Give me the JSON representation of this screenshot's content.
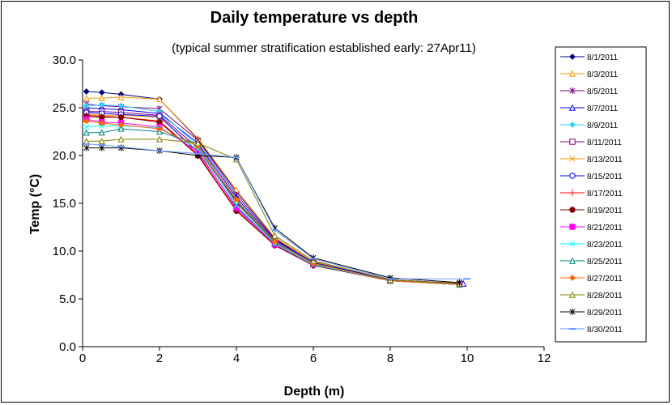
{
  "chart_data": {
    "type": "line",
    "title": "Daily temperature vs depth",
    "subtitle": "(typical summer stratification established early: 27Apr11)",
    "xlabel": "Depth (m)",
    "ylabel": "Temp (°C)",
    "xlim": [
      0,
      12
    ],
    "ylim": [
      0,
      30
    ],
    "xticks": [
      "0",
      "2",
      "4",
      "6",
      "8",
      "10",
      "12"
    ],
    "yticks": [
      "0.0",
      "5.0",
      "10.0",
      "15.0",
      "20.0",
      "25.0",
      "30.0"
    ],
    "grid": false,
    "legend_position": "right",
    "series": [
      {
        "name": "8/1/2011",
        "color": "#000080",
        "marker": "diamond",
        "x": [
          0.1,
          0.5,
          1,
          2,
          3,
          4,
          5,
          6,
          8,
          9.8
        ],
        "y": [
          26.7,
          26.6,
          26.4,
          25.9,
          21.7,
          16.2,
          11.3,
          8.9,
          7.0,
          6.6
        ]
      },
      {
        "name": "8/3/2011",
        "color": "#FF9900",
        "marker": "triangle",
        "x": [
          0.1,
          0.5,
          1,
          2,
          3,
          4,
          5,
          6,
          8,
          9.8
        ],
        "y": [
          26.0,
          26.0,
          26.1,
          25.9,
          21.8,
          16.4,
          11.4,
          8.9,
          7.0,
          6.6
        ]
      },
      {
        "name": "8/5/2011",
        "color": "#800080",
        "marker": "asterisk",
        "x": [
          0.1,
          0.5,
          1,
          2,
          3,
          4,
          5,
          6,
          8,
          9.8
        ],
        "y": [
          25.4,
          25.2,
          25.1,
          24.9,
          21.6,
          15.9,
          11.2,
          8.8,
          7.0,
          6.6
        ]
      },
      {
        "name": "8/7/2011",
        "color": "#0000FF",
        "marker": "triangle",
        "x": [
          0.1,
          0.5,
          1,
          2,
          3,
          4,
          5,
          6,
          8,
          9.9
        ],
        "y": [
          25.0,
          24.9,
          24.8,
          24.4,
          21.3,
          15.6,
          11.1,
          8.8,
          7.0,
          6.6
        ]
      },
      {
        "name": "8/9/2011",
        "color": "#33CCFF",
        "marker": "diamond",
        "x": [
          0.1,
          0.5,
          1,
          2,
          3,
          4,
          5,
          6,
          8,
          9.8
        ],
        "y": [
          25.2,
          25.3,
          25.2,
          24.6,
          21.0,
          15.3,
          11.0,
          8.7,
          6.9,
          6.5
        ]
      },
      {
        "name": "8/11/2011",
        "color": "#800080",
        "marker": "square",
        "x": [
          0.1,
          0.5,
          1,
          2,
          3,
          4,
          5,
          6,
          8,
          9.8
        ],
        "y": [
          24.6,
          24.6,
          24.5,
          24.2,
          20.8,
          15.1,
          10.9,
          8.7,
          6.9,
          6.5
        ]
      },
      {
        "name": "8/13/2011",
        "color": "#FF9900",
        "marker": "cross",
        "x": [
          0.1,
          0.5,
          1,
          2,
          3,
          4,
          5,
          6,
          8,
          9.8
        ],
        "y": [
          24.3,
          24.2,
          24.2,
          24.0,
          20.5,
          14.9,
          10.8,
          8.6,
          6.9,
          6.5
        ]
      },
      {
        "name": "8/15/2011",
        "color": "#0000FF",
        "marker": "circle",
        "x": [
          0.1,
          0.5,
          1,
          2,
          3,
          4,
          5,
          6,
          8,
          9.8
        ],
        "y": [
          24.5,
          24.4,
          24.3,
          24.1,
          20.3,
          14.6,
          10.7,
          8.6,
          6.9,
          6.5
        ]
      },
      {
        "name": "8/17/2011",
        "color": "#FF0000",
        "marker": "plus",
        "x": [
          0.1,
          0.5,
          1,
          2,
          3,
          4,
          5,
          6,
          8,
          9.8
        ],
        "y": [
          24.2,
          24.1,
          24.0,
          23.6,
          20.1,
          14.3,
          10.6,
          8.5,
          6.9,
          6.5
        ]
      },
      {
        "name": "8/19/2011",
        "color": "#800000",
        "marker": "circle",
        "x": [
          0.1,
          0.5,
          1,
          2,
          3,
          4,
          5,
          6,
          8,
          9.8
        ],
        "y": [
          24.1,
          24.0,
          24.0,
          23.5,
          20.0,
          14.2,
          10.6,
          8.5,
          6.9,
          6.5
        ]
      },
      {
        "name": "8/21/2011",
        "color": "#FF00FF",
        "marker": "square",
        "x": [
          0.1,
          0.5,
          1,
          2,
          3,
          4,
          5,
          6,
          8,
          9.8
        ],
        "y": [
          23.8,
          23.5,
          23.4,
          23.0,
          20.4,
          14.5,
          10.7,
          8.6,
          6.9,
          6.5
        ]
      },
      {
        "name": "8/23/2011",
        "color": "#00FFFF",
        "marker": "cross",
        "x": [
          0.1,
          0.5,
          1,
          2,
          3,
          4,
          5,
          6,
          8,
          9.8
        ],
        "y": [
          23.0,
          23.1,
          23.1,
          22.9,
          20.7,
          14.8,
          10.8,
          8.6,
          6.9,
          6.5
        ]
      },
      {
        "name": "8/25/2011",
        "color": "#008080",
        "marker": "triangle",
        "x": [
          0.1,
          0.5,
          1,
          2,
          3,
          4,
          5,
          6,
          8,
          9.8
        ],
        "y": [
          22.4,
          22.4,
          22.8,
          22.5,
          21.2,
          15.2,
          10.9,
          8.7,
          6.9,
          6.5
        ]
      },
      {
        "name": "8/27/2011",
        "color": "#FF6600",
        "marker": "diamond",
        "x": [
          0.1,
          0.5,
          1,
          2,
          3,
          4,
          5,
          6,
          8,
          9.8
        ],
        "y": [
          23.6,
          23.4,
          23.2,
          22.8,
          21.0,
          15.4,
          11.0,
          8.7,
          6.9,
          6.5
        ]
      },
      {
        "name": "8/28/2011",
        "color": "#808000",
        "marker": "triangle",
        "x": [
          0.1,
          0.5,
          1,
          2,
          3,
          4,
          5,
          6,
          8,
          9.8
        ],
        "y": [
          21.5,
          21.5,
          21.7,
          21.7,
          21.3,
          19.6,
          11.6,
          9.0,
          7.0,
          6.6
        ]
      },
      {
        "name": "8/29/2011",
        "color": "#000000",
        "marker": "asterisk",
        "x": [
          0.1,
          0.5,
          1,
          2,
          3,
          4,
          5,
          6,
          8,
          9.8
        ],
        "y": [
          20.8,
          20.8,
          20.8,
          20.5,
          20.0,
          19.8,
          12.4,
          9.3,
          7.2,
          6.7
        ]
      },
      {
        "name": "8/30/2011",
        "color": "#6699FF",
        "marker": "dash",
        "x": [
          0.1,
          0.5,
          1,
          2,
          3,
          4,
          5,
          6,
          8,
          10
        ],
        "y": [
          21.2,
          21.1,
          20.9,
          20.5,
          20.2,
          19.8,
          12.2,
          9.2,
          7.1,
          7.1
        ]
      }
    ]
  }
}
